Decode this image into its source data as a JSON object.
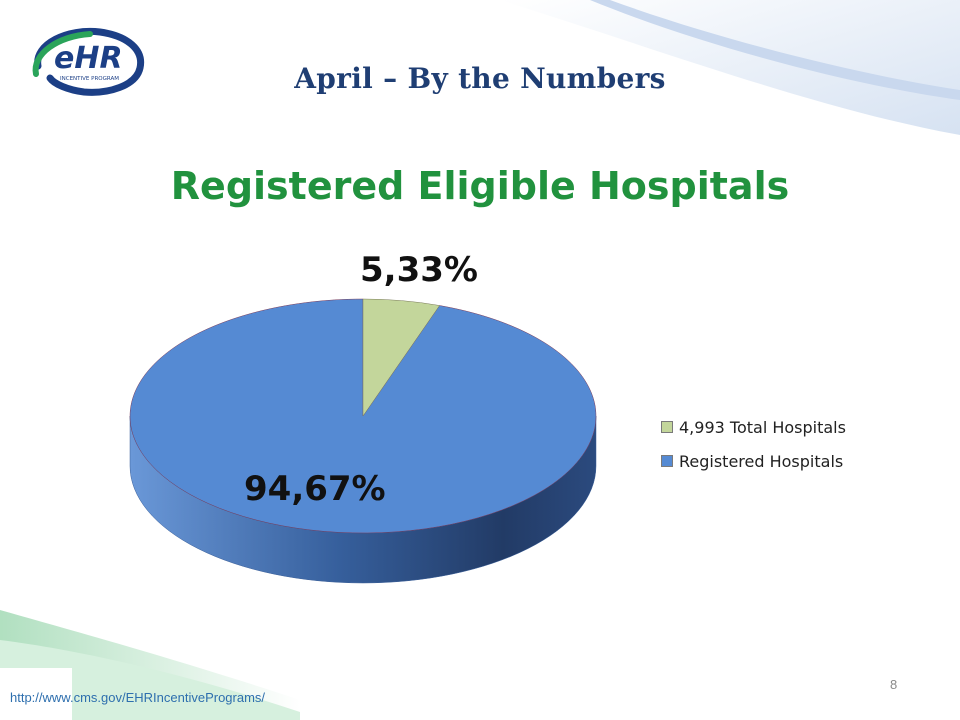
{
  "logo": {
    "text": "eHR",
    "subtext": "INCENTIVE PROGRAM"
  },
  "slide": {
    "title": "April – By the Numbers",
    "page_number": "8"
  },
  "footer": {
    "url": "http://www.cms.gov/EHRIncentivePrograms/"
  },
  "colors": {
    "title": "#1f3e73",
    "chart_title": "#21923e",
    "total_slice": "#c3d69b",
    "registered_slice": "#558ad3"
  },
  "chart_data": {
    "type": "pie",
    "title": "Registered Eligible Hospitals",
    "three_d": true,
    "legend_position": "right",
    "slices": [
      {
        "label": "4,993 Total Hospitals",
        "value": 5.33,
        "data_label": "5,33%"
      },
      {
        "label": "Registered Hospitals",
        "value": 94.67,
        "data_label": "94,67%"
      }
    ]
  }
}
